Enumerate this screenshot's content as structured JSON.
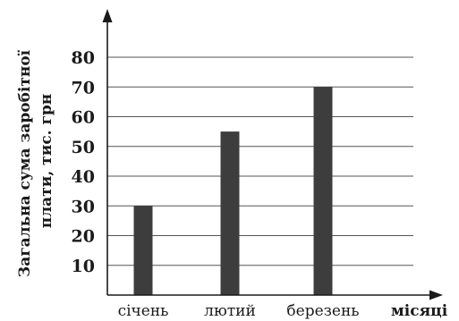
{
  "chart_data": {
    "type": "bar",
    "categories": [
      "січень",
      "лютий",
      "березень"
    ],
    "values": [
      30,
      55,
      70
    ],
    "title": "",
    "xlabel": "місяці",
    "ylabel_lines": [
      "Загальна сума заробітної",
      "плати, тис. грн"
    ],
    "ylim": [
      0,
      80
    ],
    "yticks": [
      10,
      20,
      30,
      40,
      50,
      60,
      70,
      80
    ],
    "grid": true,
    "bar_color": "#3d3d3d",
    "grid_color": "#555555"
  }
}
